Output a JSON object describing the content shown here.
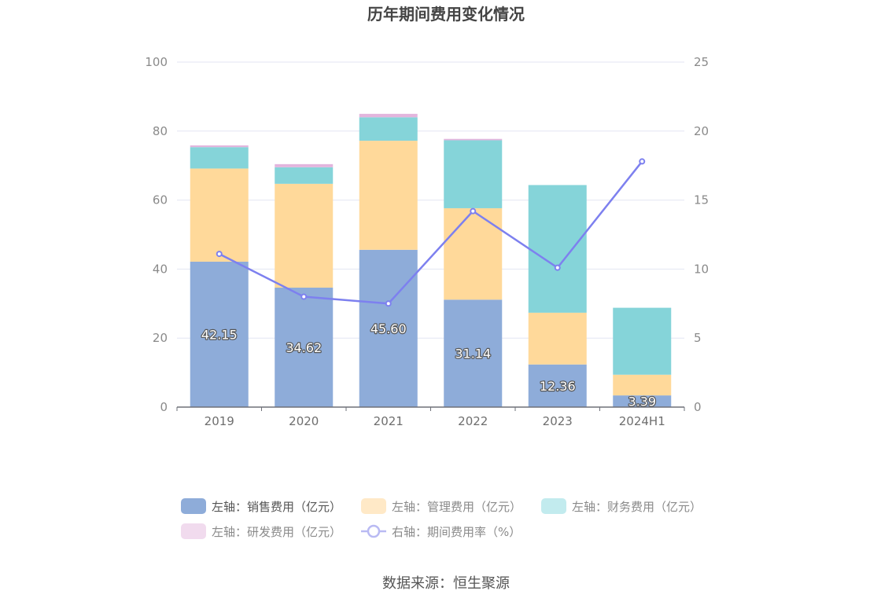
{
  "chart_data": {
    "type": "bar",
    "stacked": true,
    "title": "历年期间费用变化情况",
    "categories": [
      "2019",
      "2020",
      "2021",
      "2022",
      "2023",
      "2024H1"
    ],
    "y_left": {
      "min": 0,
      "max": 100,
      "ticks": [
        "0",
        "20",
        "40",
        "60",
        "80",
        "100"
      ]
    },
    "y_right": {
      "min": 0,
      "max": 25,
      "ticks": [
        "0",
        "5",
        "10",
        "15",
        "20",
        "25"
      ]
    },
    "series": [
      {
        "name": "左轴：销售费用（亿元）",
        "axis": "left",
        "color": "#8eacd9",
        "values": [
          42.15,
          34.62,
          45.6,
          31.14,
          12.36,
          3.39
        ],
        "labels": [
          "42.15",
          "34.62",
          "45.60",
          "31.14",
          "12.36",
          "3.39"
        ]
      },
      {
        "name": "左轴：管理费用（亿元）",
        "axis": "left",
        "color": "#ffd99a",
        "legend_color": "#ffe9c7",
        "values": [
          27.0,
          30.1,
          31.6,
          26.5,
          15.0,
          6.0
        ]
      },
      {
        "name": "左轴：财务费用（亿元）",
        "axis": "left",
        "color": "#85d4d9",
        "legend_color": "#c2ebee",
        "values": [
          6.2,
          4.8,
          6.8,
          19.7,
          37.0,
          19.4
        ]
      },
      {
        "name": "左轴：研发费用（亿元）",
        "axis": "left",
        "color": "#e3b5dd",
        "legend_color": "#f1dbee",
        "values": [
          0.5,
          0.9,
          1.0,
          0.4,
          0.0,
          0.0
        ]
      }
    ],
    "line": {
      "name": "右轴：期间费用率（%）",
      "axis": "right",
      "color": "#7d80ef",
      "values": [
        11.1,
        8.0,
        7.5,
        14.2,
        10.1,
        17.8
      ]
    },
    "legend_position": "bottom"
  },
  "source": "数据来源：恒生聚源"
}
